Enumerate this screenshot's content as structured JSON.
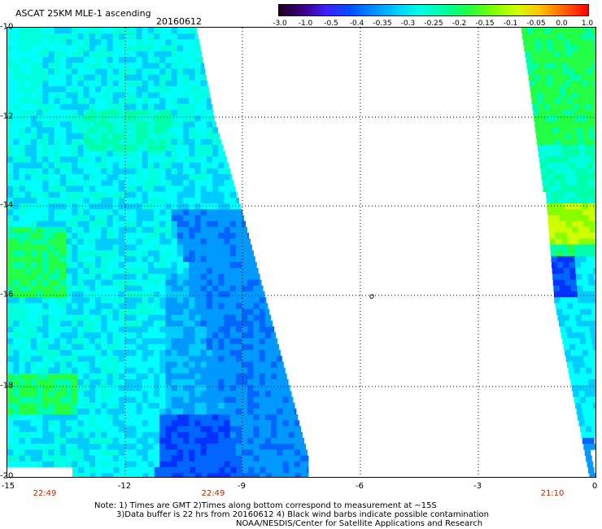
{
  "header": {
    "title": "ASCAT 25KM MLE-1 ascending",
    "date": "20160612"
  },
  "colorbar": {
    "labels": [
      "-3.0",
      "-1.0",
      "-0.5",
      "-0.4",
      "-0.35",
      "-0.3",
      "-0.25",
      "-0.2",
      "-0.15",
      "-0.1",
      "-0.05",
      "0.0",
      "1.0"
    ],
    "colors": [
      "#200020",
      "#3a0080",
      "#4020ff",
      "#0050ff",
      "#0090ff",
      "#00d0ff",
      "#00ffe0",
      "#00ffa0",
      "#20ff40",
      "#80ff00",
      "#d0ff00",
      "#ffc000",
      "#ff6000",
      "#ff0000"
    ]
  },
  "map": {
    "y_labels": [
      "-10",
      "-12",
      "-14",
      "-16",
      "-18",
      "-20"
    ],
    "x_labels": [
      "-15",
      "-12",
      "-9",
      "-6",
      "-3",
      "0"
    ],
    "time_labels": [
      "22:49",
      "22:49",
      "21:10"
    ],
    "x_range": [
      -15,
      0
    ],
    "y_range": [
      -20,
      -10
    ],
    "marker": "o",
    "colors": {
      "cyan": "#00ffff",
      "aqua": "#00ffdd",
      "mint": "#00ffaa",
      "green": "#22ff44",
      "sky": "#00ccff",
      "blue": "#0099ff",
      "royal": "#0066ff",
      "deep": "#0033ff",
      "yellow": "#ccff00",
      "lime": "#88ff00"
    }
  },
  "notes": {
    "line1": "Note: 1) Times are GMT 2)Times along bottom correspond to measurement at ~15S",
    "line2": "3)Data buffer is 22 hrs from 20160612 4) Black wind barbs indicate possible contamination",
    "line3": "NOAA/NESDIS/Center for Satellite Applications and Research"
  }
}
